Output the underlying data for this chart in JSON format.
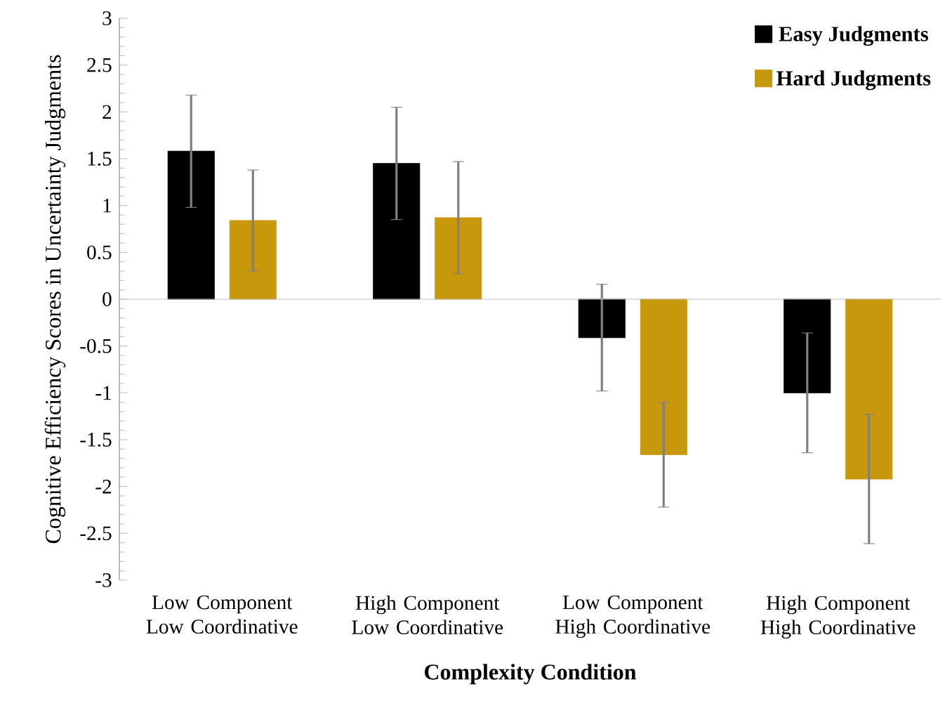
{
  "chart_data": {
    "type": "bar",
    "xlabel": "Complexity Condition",
    "ylabel": "Cognitive Efficiency Scores in Uncertainty Judgments",
    "categories": [
      "Low Component Low Coordinative",
      "High Component Low Coordinative",
      "Low Component High Coordinative",
      "High Component High Coordinative"
    ],
    "series": [
      {
        "name": "Easy Judgments",
        "color": "#000000",
        "values": [
          1.58,
          1.45,
          -0.41,
          -1.0
        ],
        "errors": [
          0.6,
          0.6,
          0.57,
          0.64
        ]
      },
      {
        "name": "Hard Judgments",
        "color": "#c8980c",
        "values": [
          0.84,
          0.87,
          -1.66,
          -1.92
        ],
        "errors": [
          0.54,
          0.6,
          0.56,
          0.69
        ]
      }
    ],
    "ylim": [
      -3,
      3
    ],
    "yticks": [
      -3,
      -2.5,
      -2,
      -1.5,
      -1,
      -0.5,
      0,
      0.5,
      1,
      1.5,
      2,
      2.5,
      3
    ],
    "legend": "top right"
  }
}
